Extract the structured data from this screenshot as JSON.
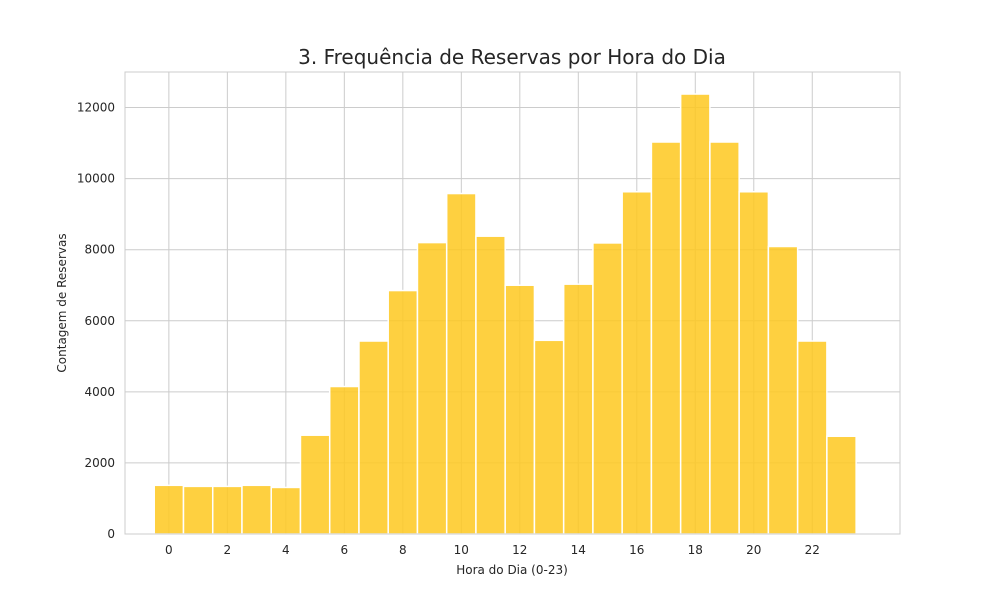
{
  "chart_data": {
    "type": "bar",
    "title": "3. Frequência de Reservas por Hora do Dia",
    "xlabel": "Hora do Dia (0-23)",
    "ylabel": "Contagem de Reservas",
    "categories": [
      0,
      1,
      2,
      3,
      4,
      5,
      6,
      7,
      8,
      9,
      10,
      11,
      12,
      13,
      14,
      15,
      16,
      17,
      18,
      19,
      20,
      21,
      22,
      23
    ],
    "values": [
      1370,
      1340,
      1340,
      1370,
      1310,
      2780,
      4150,
      5430,
      6850,
      8200,
      9580,
      8380,
      7000,
      5450,
      7030,
      8190,
      9630,
      11030,
      12380,
      11030,
      9630,
      8090,
      5430,
      2750
    ],
    "xlim": [
      -1.5,
      25
    ],
    "ylim": [
      0,
      13000
    ],
    "xticks": [
      0,
      2,
      4,
      6,
      8,
      10,
      12,
      14,
      16,
      18,
      20,
      22
    ],
    "yticks": [
      0,
      2000,
      4000,
      6000,
      8000,
      10000,
      12000
    ],
    "bar_color": "#fec81e",
    "bar_edge_color": "#ffffff",
    "grid": true,
    "legend": "none"
  }
}
